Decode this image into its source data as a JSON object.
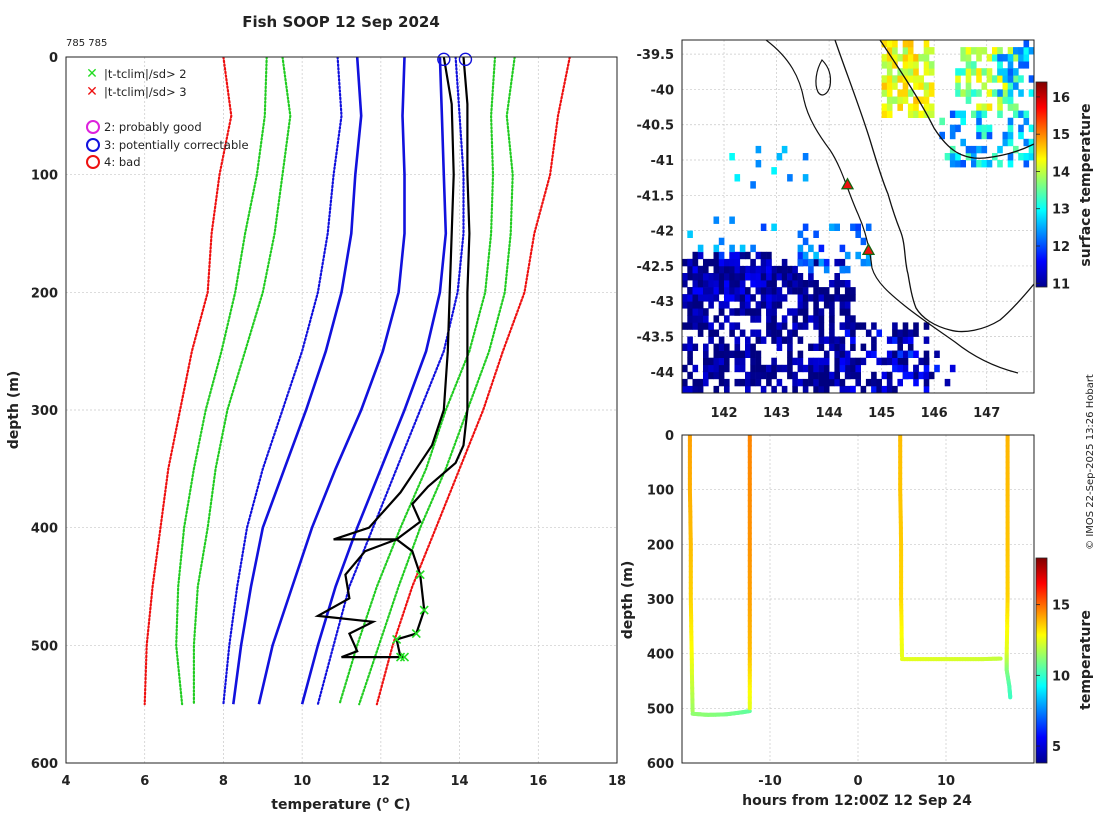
{
  "chart_data": [
    {
      "type": "line",
      "title": "Fish SOOP 12 Sep 2024",
      "id_label": "785 785",
      "xlabel": "temperature (",
      "xlabel_sup": "o",
      "xlabel_end": " C)",
      "ylabel": "depth (m)",
      "xlim": [
        4,
        18
      ],
      "ylim": [
        0,
        600
      ],
      "xticks": [
        "4",
        "6",
        "8",
        "10",
        "12",
        "14",
        "16",
        "18"
      ],
      "yticks": [
        "0",
        "100",
        "200",
        "300",
        "400",
        "500",
        "600"
      ],
      "legend": [
        {
          "symbol": "x",
          "color": "#22dd22",
          "label": "|t-tclim|/sd> 2"
        },
        {
          "symbol": "x",
          "color": "#ee1111",
          "label": "|t-tclim|/sd> 3"
        },
        {
          "symbol": "o",
          "color": "#dd22dd",
          "label": "2: probably good"
        },
        {
          "symbol": "o",
          "color": "#1111dd",
          "label": "3: potentially correctable"
        },
        {
          "symbol": "o",
          "color": "#ee1111",
          "label": "4: bad"
        }
      ],
      "climatology_depths": [
        0,
        50,
        100,
        150,
        200,
        250,
        300,
        350,
        400,
        450,
        500,
        550
      ],
      "climatology": [
        {
          "name": "mean",
          "color": "#1111dd",
          "style": "solid",
          "values": [
            12.6,
            12.55,
            12.6,
            12.6,
            12.45,
            12.05,
            11.5,
            10.85,
            10.25,
            9.75,
            9.25,
            8.9
          ]
        },
        {
          "name": "mean-2sd",
          "color": "#1111dd",
          "style": "solid",
          "values": [
            11.4,
            11.5,
            11.35,
            11.25,
            11.0,
            10.6,
            10.1,
            9.55,
            9.0,
            8.7,
            8.45,
            8.25
          ]
        },
        {
          "name": "mean+2sd",
          "color": "#1111dd",
          "style": "solid",
          "values": [
            13.5,
            13.55,
            13.6,
            13.65,
            13.5,
            13.15,
            12.6,
            12.0,
            11.4,
            10.85,
            10.4,
            10.0
          ]
        },
        {
          "name": "mean-1sd",
          "color": "#1111dd",
          "style": "dotted",
          "values": [
            10.9,
            11.0,
            10.8,
            10.65,
            10.4,
            10.0,
            9.5,
            9.0,
            8.6,
            8.35,
            8.15,
            8.0
          ]
        },
        {
          "name": "mean+1sd",
          "color": "#1111dd",
          "style": "dotted",
          "values": [
            13.9,
            14.0,
            14.1,
            14.1,
            13.95,
            13.6,
            13.0,
            12.4,
            11.8,
            11.2,
            10.8,
            10.4
          ]
        },
        {
          "name": "mean-3sd",
          "color": "#22cc22",
          "style": "dotted",
          "values": [
            9.5,
            9.7,
            9.5,
            9.3,
            9.0,
            8.55,
            8.1,
            7.8,
            7.6,
            7.35,
            7.25,
            7.25
          ]
        },
        {
          "name": "mean+3sd",
          "color": "#22cc22",
          "style": "dotted",
          "values": [
            14.9,
            14.8,
            14.85,
            14.8,
            14.65,
            14.25,
            13.65,
            13.15,
            12.5,
            11.9,
            11.4,
            10.95
          ]
        },
        {
          "name": "mean-4sd",
          "color": "#22cc22",
          "style": "dotted",
          "values": [
            9.1,
            9.05,
            8.85,
            8.55,
            8.3,
            7.95,
            7.55,
            7.25,
            7.0,
            6.85,
            6.8,
            6.95
          ]
        },
        {
          "name": "mean+4sd",
          "color": "#22cc22",
          "style": "dotted",
          "values": [
            15.4,
            15.2,
            15.35,
            15.3,
            15.15,
            14.75,
            14.2,
            13.65,
            13.0,
            12.45,
            11.95,
            11.45
          ]
        },
        {
          "name": "mean-5sd",
          "color": "#ee1111",
          "style": "dotted",
          "values": [
            8.0,
            8.2,
            7.9,
            7.7,
            7.6,
            7.2,
            6.9,
            6.6,
            6.4,
            6.2,
            6.05,
            6.0
          ]
        },
        {
          "name": "mean+5sd",
          "color": "#ee1111",
          "style": "dotted",
          "values": [
            16.8,
            16.5,
            16.3,
            15.9,
            15.65,
            15.1,
            14.6,
            14.0,
            13.4,
            12.8,
            12.3,
            11.9
          ]
        }
      ],
      "profiles": [
        {
          "name": "profile-1",
          "color": "#000000",
          "points": [
            [
              13.6,
              0
            ],
            [
              13.8,
              40
            ],
            [
              13.85,
              100
            ],
            [
              13.8,
              150
            ],
            [
              13.75,
              200
            ],
            [
              13.7,
              250
            ],
            [
              13.6,
              300
            ],
            [
              13.3,
              330
            ],
            [
              12.9,
              350
            ],
            [
              12.5,
              370
            ],
            [
              12.1,
              385
            ],
            [
              11.7,
              400
            ],
            [
              10.8,
              410
            ],
            [
              12.4,
              410
            ],
            [
              11.6,
              420
            ],
            [
              11.1,
              440
            ],
            [
              11.2,
              460
            ],
            [
              10.4,
              475
            ],
            [
              11.8,
              480
            ],
            [
              11.2,
              490
            ],
            [
              11.4,
              505
            ],
            [
              11.0,
              510
            ],
            [
              12.6,
              510
            ]
          ]
        },
        {
          "name": "profile-2",
          "color": "#000000",
          "points": [
            [
              14.1,
              0
            ],
            [
              14.2,
              40
            ],
            [
              14.2,
              100
            ],
            [
              14.25,
              150
            ],
            [
              14.2,
              200
            ],
            [
              14.2,
              250
            ],
            [
              14.2,
              300
            ],
            [
              14.1,
              330
            ],
            [
              13.9,
              345
            ],
            [
              13.2,
              365
            ],
            [
              12.8,
              380
            ],
            [
              13.0,
              395
            ],
            [
              12.4,
              410
            ],
            [
              12.8,
              420
            ],
            [
              13.0,
              440
            ],
            [
              13.1,
              470
            ],
            [
              12.9,
              490
            ],
            [
              12.4,
              495
            ],
            [
              12.5,
              510
            ]
          ]
        }
      ],
      "flag_circles": [
        [
          13.6,
          2
        ],
        [
          14.15,
          2
        ]
      ]
    },
    {
      "type": "heatmap",
      "xticks": [
        "142",
        "143",
        "144",
        "145",
        "146",
        "147"
      ],
      "yticks": [
        "-39.5",
        "-40",
        "-40.5",
        "-41",
        "-41.5",
        "-42",
        "-42.5",
        "-43",
        "-43.5",
        "-44"
      ],
      "xlim": [
        141.2,
        147.9
      ],
      "ylim": [
        -44.3,
        -39.3
      ],
      "colorbar_label": "surface temperature",
      "colorbar_ticks": [
        "11",
        "12",
        "13",
        "14",
        "15",
        "16"
      ],
      "colorbar_range": [
        10.9,
        16.4
      ],
      "markers": [
        {
          "lon": 144.35,
          "lat": -41.35
        },
        {
          "lon": 144.75,
          "lat": -42.28
        }
      ]
    },
    {
      "type": "scatter",
      "xlabel": "hours from 12:00Z 12 Sep 24",
      "ylabel": "depth (m)",
      "xticks": [
        "-10",
        "0",
        "10"
      ],
      "yticks": [
        "0",
        "100",
        "200",
        "300",
        "400",
        "500",
        "600"
      ],
      "xlim": [
        -20,
        20
      ],
      "ylim": [
        0,
        600
      ],
      "colorbar_label": "temperature",
      "colorbar_ticks": [
        "5",
        "10",
        "15"
      ],
      "colorbar_range": [
        3.8,
        18.3
      ],
      "tracks": [
        {
          "points": [
            [
              -19.1,
              0,
              14.2
            ],
            [
              -19.1,
              100,
              14.0
            ],
            [
              -19.0,
              200,
              13.8
            ],
            [
              -19.0,
              300,
              13.5
            ],
            [
              -18.9,
              400,
              12.8
            ],
            [
              -18.8,
              505,
              11.5
            ]
          ]
        },
        {
          "points": [
            [
              -18.8,
              510,
              11.3
            ],
            [
              -17,
              512,
              11.2
            ],
            [
              -15,
              511,
              11.0
            ],
            [
              -13.5,
              508,
              10.8
            ],
            [
              -12.3,
              505,
              10.6
            ]
          ]
        },
        {
          "points": [
            [
              -12.3,
              0,
              14.6
            ],
            [
              -12.3,
              100,
              14.5
            ],
            [
              -12.3,
              200,
              14.4
            ],
            [
              -12.3,
              300,
              14.2
            ],
            [
              -12.3,
              400,
              13.8
            ],
            [
              -12.3,
              500,
              12.5
            ]
          ]
        },
        {
          "points": [
            [
              4.8,
              0,
              13.8
            ],
            [
              4.8,
              100,
              13.7
            ],
            [
              4.9,
              200,
              13.6
            ],
            [
              4.9,
              300,
              13.4
            ],
            [
              5.0,
              405,
              12.5
            ]
          ]
        },
        {
          "points": [
            [
              5.0,
              410,
              12.5
            ],
            [
              8,
              410,
              12.4
            ],
            [
              11,
              410,
              12.3
            ],
            [
              14,
              410,
              12.2
            ],
            [
              16.2,
              409,
              12.0
            ]
          ]
        },
        {
          "points": [
            [
              17.0,
              0,
              13.9
            ],
            [
              17.0,
              100,
              13.8
            ],
            [
              17.0,
              200,
              13.7
            ],
            [
              17.0,
              300,
              13.5
            ],
            [
              16.9,
              400,
              12.4
            ],
            [
              16.9,
              430,
              11.2
            ],
            [
              17.2,
              460,
              10.4
            ],
            [
              17.3,
              480,
              10.1
            ]
          ]
        }
      ]
    }
  ],
  "footer_credit": "© IMOS 22-Sep-2025 13:26 Hobart"
}
